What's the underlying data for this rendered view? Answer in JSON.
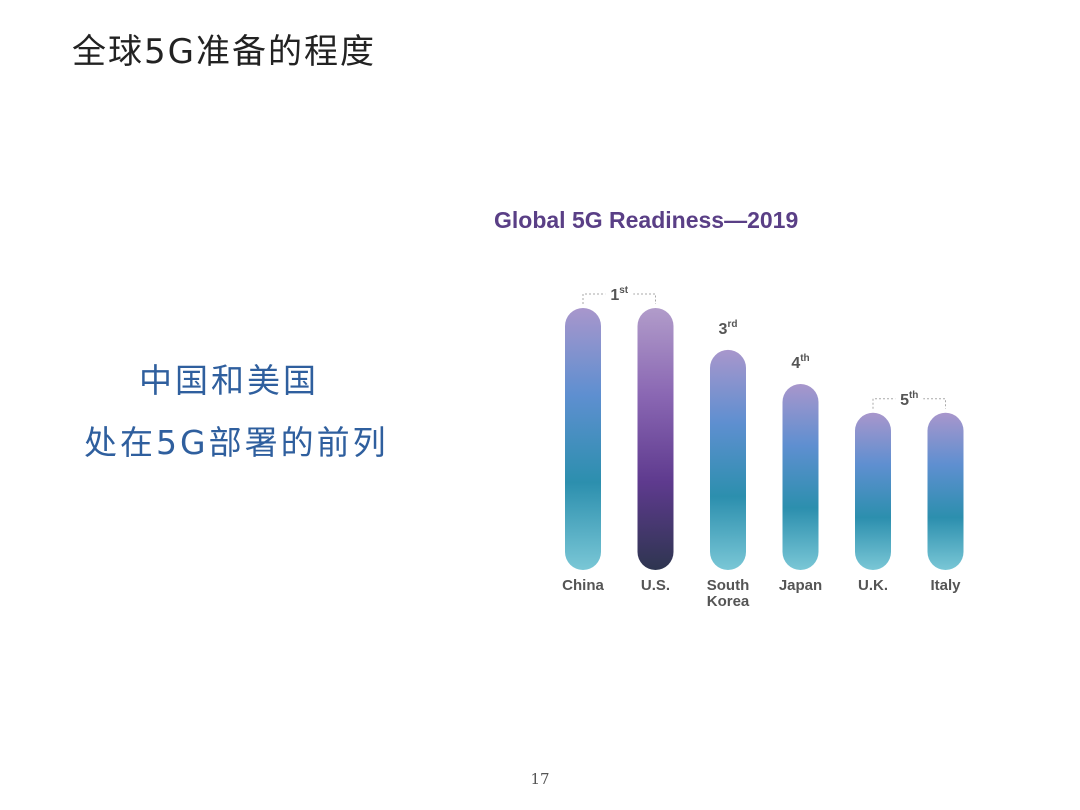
{
  "slide": {
    "title": "全球5G准备的程度",
    "callout_lines": [
      "中国和美国",
      "处在5G部署的前列"
    ],
    "page_number": "17"
  },
  "chart_data": {
    "type": "bar",
    "title": "Global 5G Readiness—2019",
    "categories": [
      "China",
      "U.S.",
      "South Korea",
      "Japan",
      "U.K.",
      "Italy"
    ],
    "category_label_lines": [
      [
        "China"
      ],
      [
        "U.S."
      ],
      [
        "South",
        "Korea"
      ],
      [
        "Japan"
      ],
      [
        "U.K."
      ],
      [
        "Italy"
      ]
    ],
    "values": [
      100,
      100,
      84,
      71,
      60,
      60
    ],
    "rank_annotations": [
      {
        "label": "1",
        "suffix": "st",
        "categories": [
          "China",
          "U.S."
        ]
      },
      {
        "label": "3",
        "suffix": "rd",
        "categories": [
          "South Korea"
        ]
      },
      {
        "label": "4",
        "suffix": "th",
        "categories": [
          "Japan"
        ]
      },
      {
        "label": "5",
        "suffix": "th",
        "categories": [
          "U.K.",
          "Italy"
        ]
      }
    ],
    "xlabel": "",
    "ylabel": "",
    "grid": false,
    "colors": {
      "bar_gradient": [
        "#a896cc",
        "#5e8fd0",
        "#2c8fae",
        "#7ac7d6"
      ],
      "highlight_gradient": [
        "#b19cca",
        "#8a67b3",
        "#5e3a8e",
        "#2e3550"
      ],
      "highlight_category": "U.S.",
      "title": "#5a3f86",
      "axis_text": "#555555",
      "annotation_text": "#555555",
      "bracket": "#aaaaaa"
    }
  }
}
